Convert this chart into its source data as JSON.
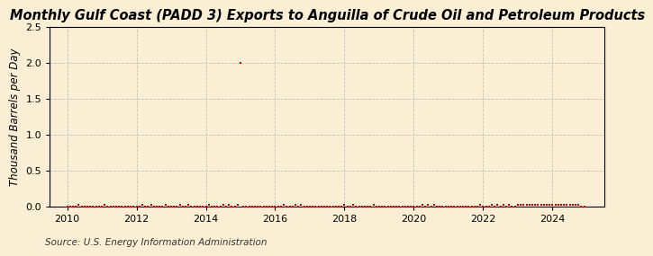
{
  "title": "Monthly Gulf Coast (PADD 3) Exports to Anguilla of Crude Oil and Petroleum Products",
  "ylabel": "Thousand Barrels per Day",
  "source": "Source: U.S. Energy Information Administration",
  "background_color": "#faefd4",
  "plot_bg_color": "#faefd4",
  "marker_color": "#cc0000",
  "grid_color": "#bbbbbb",
  "xlim": [
    2009.5,
    2025.5
  ],
  "ylim": [
    0,
    2.5
  ],
  "yticks": [
    0.0,
    0.5,
    1.0,
    1.5,
    2.0,
    2.5
  ],
  "xticks": [
    2010,
    2012,
    2014,
    2016,
    2018,
    2020,
    2022,
    2024
  ],
  "title_fontsize": 10.5,
  "ylabel_fontsize": 8.5,
  "source_fontsize": 7.5,
  "data_x": [
    2010.0,
    2010.083,
    2010.167,
    2010.25,
    2010.333,
    2010.417,
    2010.5,
    2010.583,
    2010.667,
    2010.75,
    2010.833,
    2010.917,
    2011.0,
    2011.083,
    2011.167,
    2011.25,
    2011.333,
    2011.417,
    2011.5,
    2011.583,
    2011.667,
    2011.75,
    2011.833,
    2011.917,
    2012.0,
    2012.083,
    2012.167,
    2012.25,
    2012.333,
    2012.417,
    2012.5,
    2012.583,
    2012.667,
    2012.75,
    2012.833,
    2012.917,
    2013.0,
    2013.083,
    2013.167,
    2013.25,
    2013.333,
    2013.417,
    2013.5,
    2013.583,
    2013.667,
    2013.75,
    2013.833,
    2013.917,
    2014.0,
    2014.083,
    2014.167,
    2014.25,
    2014.333,
    2014.417,
    2014.5,
    2014.583,
    2014.667,
    2014.75,
    2014.833,
    2014.917,
    2015.0,
    2015.083,
    2015.167,
    2015.25,
    2015.333,
    2015.417,
    2015.5,
    2015.583,
    2015.667,
    2015.75,
    2015.833,
    2015.917,
    2016.0,
    2016.083,
    2016.167,
    2016.25,
    2016.333,
    2016.417,
    2016.5,
    2016.583,
    2016.667,
    2016.75,
    2016.833,
    2016.917,
    2017.0,
    2017.083,
    2017.167,
    2017.25,
    2017.333,
    2017.417,
    2017.5,
    2017.583,
    2017.667,
    2017.75,
    2017.833,
    2017.917,
    2018.0,
    2018.083,
    2018.167,
    2018.25,
    2018.333,
    2018.417,
    2018.5,
    2018.583,
    2018.667,
    2018.75,
    2018.833,
    2018.917,
    2019.0,
    2019.083,
    2019.167,
    2019.25,
    2019.333,
    2019.417,
    2019.5,
    2019.583,
    2019.667,
    2019.75,
    2019.833,
    2019.917,
    2020.0,
    2020.083,
    2020.167,
    2020.25,
    2020.333,
    2020.417,
    2020.5,
    2020.583,
    2020.667,
    2020.75,
    2020.833,
    2020.917,
    2021.0,
    2021.083,
    2021.167,
    2021.25,
    2021.333,
    2021.417,
    2021.5,
    2021.583,
    2021.667,
    2021.75,
    2021.833,
    2021.917,
    2022.0,
    2022.083,
    2022.167,
    2022.25,
    2022.333,
    2022.417,
    2022.5,
    2022.583,
    2022.667,
    2022.75,
    2022.833,
    2022.917,
    2023.0,
    2023.083,
    2023.167,
    2023.25,
    2023.333,
    2023.417,
    2023.5,
    2023.583,
    2023.667,
    2023.75,
    2023.833,
    2023.917,
    2024.0,
    2024.083,
    2024.167,
    2024.25,
    2024.333,
    2024.417,
    2024.5,
    2024.583,
    2024.667,
    2024.75,
    2024.833,
    2024.917
  ],
  "data_y": [
    0.0,
    0.0,
    0.0,
    0.0,
    0.02,
    0.0,
    0.0,
    0.0,
    0.0,
    0.0,
    0.0,
    0.0,
    0.0,
    0.02,
    0.0,
    0.0,
    0.0,
    0.0,
    0.0,
    0.0,
    0.0,
    0.0,
    0.0,
    0.0,
    0.0,
    0.0,
    0.02,
    0.0,
    0.0,
    0.02,
    0.0,
    0.0,
    0.0,
    0.0,
    0.02,
    0.0,
    0.0,
    0.0,
    0.0,
    0.02,
    0.0,
    0.0,
    0.02,
    0.0,
    0.0,
    0.0,
    0.0,
    0.0,
    0.0,
    0.02,
    0.0,
    0.0,
    0.0,
    0.0,
    0.02,
    0.0,
    0.02,
    0.0,
    0.0,
    0.02,
    2.0,
    0.0,
    0.0,
    0.0,
    0.0,
    0.0,
    0.0,
    0.0,
    0.0,
    0.0,
    0.0,
    0.0,
    0.0,
    0.0,
    0.0,
    0.02,
    0.0,
    0.0,
    0.0,
    0.02,
    0.0,
    0.02,
    0.0,
    0.0,
    0.0,
    0.0,
    0.0,
    0.0,
    0.0,
    0.0,
    0.0,
    0.0,
    0.0,
    0.0,
    0.0,
    0.0,
    0.02,
    0.0,
    0.0,
    0.02,
    0.0,
    0.0,
    0.0,
    0.0,
    0.0,
    0.0,
    0.02,
    0.0,
    0.0,
    0.0,
    0.0,
    0.0,
    0.0,
    0.0,
    0.0,
    0.0,
    0.0,
    0.0,
    0.0,
    0.0,
    0.0,
    0.0,
    0.0,
    0.02,
    0.0,
    0.02,
    0.0,
    0.02,
    0.0,
    0.0,
    0.0,
    0.0,
    0.0,
    0.0,
    0.0,
    0.0,
    0.0,
    0.0,
    0.0,
    0.0,
    0.0,
    0.0,
    0.0,
    0.02,
    0.0,
    0.0,
    0.0,
    0.02,
    0.0,
    0.02,
    0.0,
    0.02,
    0.0,
    0.02,
    0.0,
    0.0,
    0.02,
    0.02,
    0.02,
    0.02,
    0.02,
    0.02,
    0.02,
    0.02,
    0.02,
    0.02,
    0.02,
    0.02,
    0.02,
    0.02,
    0.02,
    0.02,
    0.02,
    0.02,
    0.02,
    0.02,
    0.02,
    0.02,
    0.0,
    0.0
  ]
}
